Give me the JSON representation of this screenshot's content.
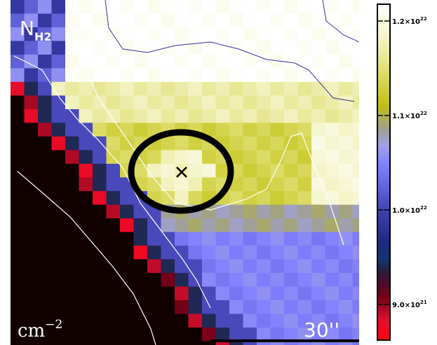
{
  "map": {
    "label": "N",
    "label_subscript": "H2",
    "unit": "cm",
    "unit_exponent": "−2",
    "scale_bar": "30''"
  },
  "colorbar": {
    "ticks": [
      {
        "mantissa": "1.2×10",
        "exponent": "22"
      },
      {
        "mantissa": "1.1×10",
        "exponent": "22"
      },
      {
        "mantissa": "1.0×10",
        "exponent": "22"
      },
      {
        "mantissa": "9.0×10",
        "exponent": "21"
      }
    ]
  }
}
